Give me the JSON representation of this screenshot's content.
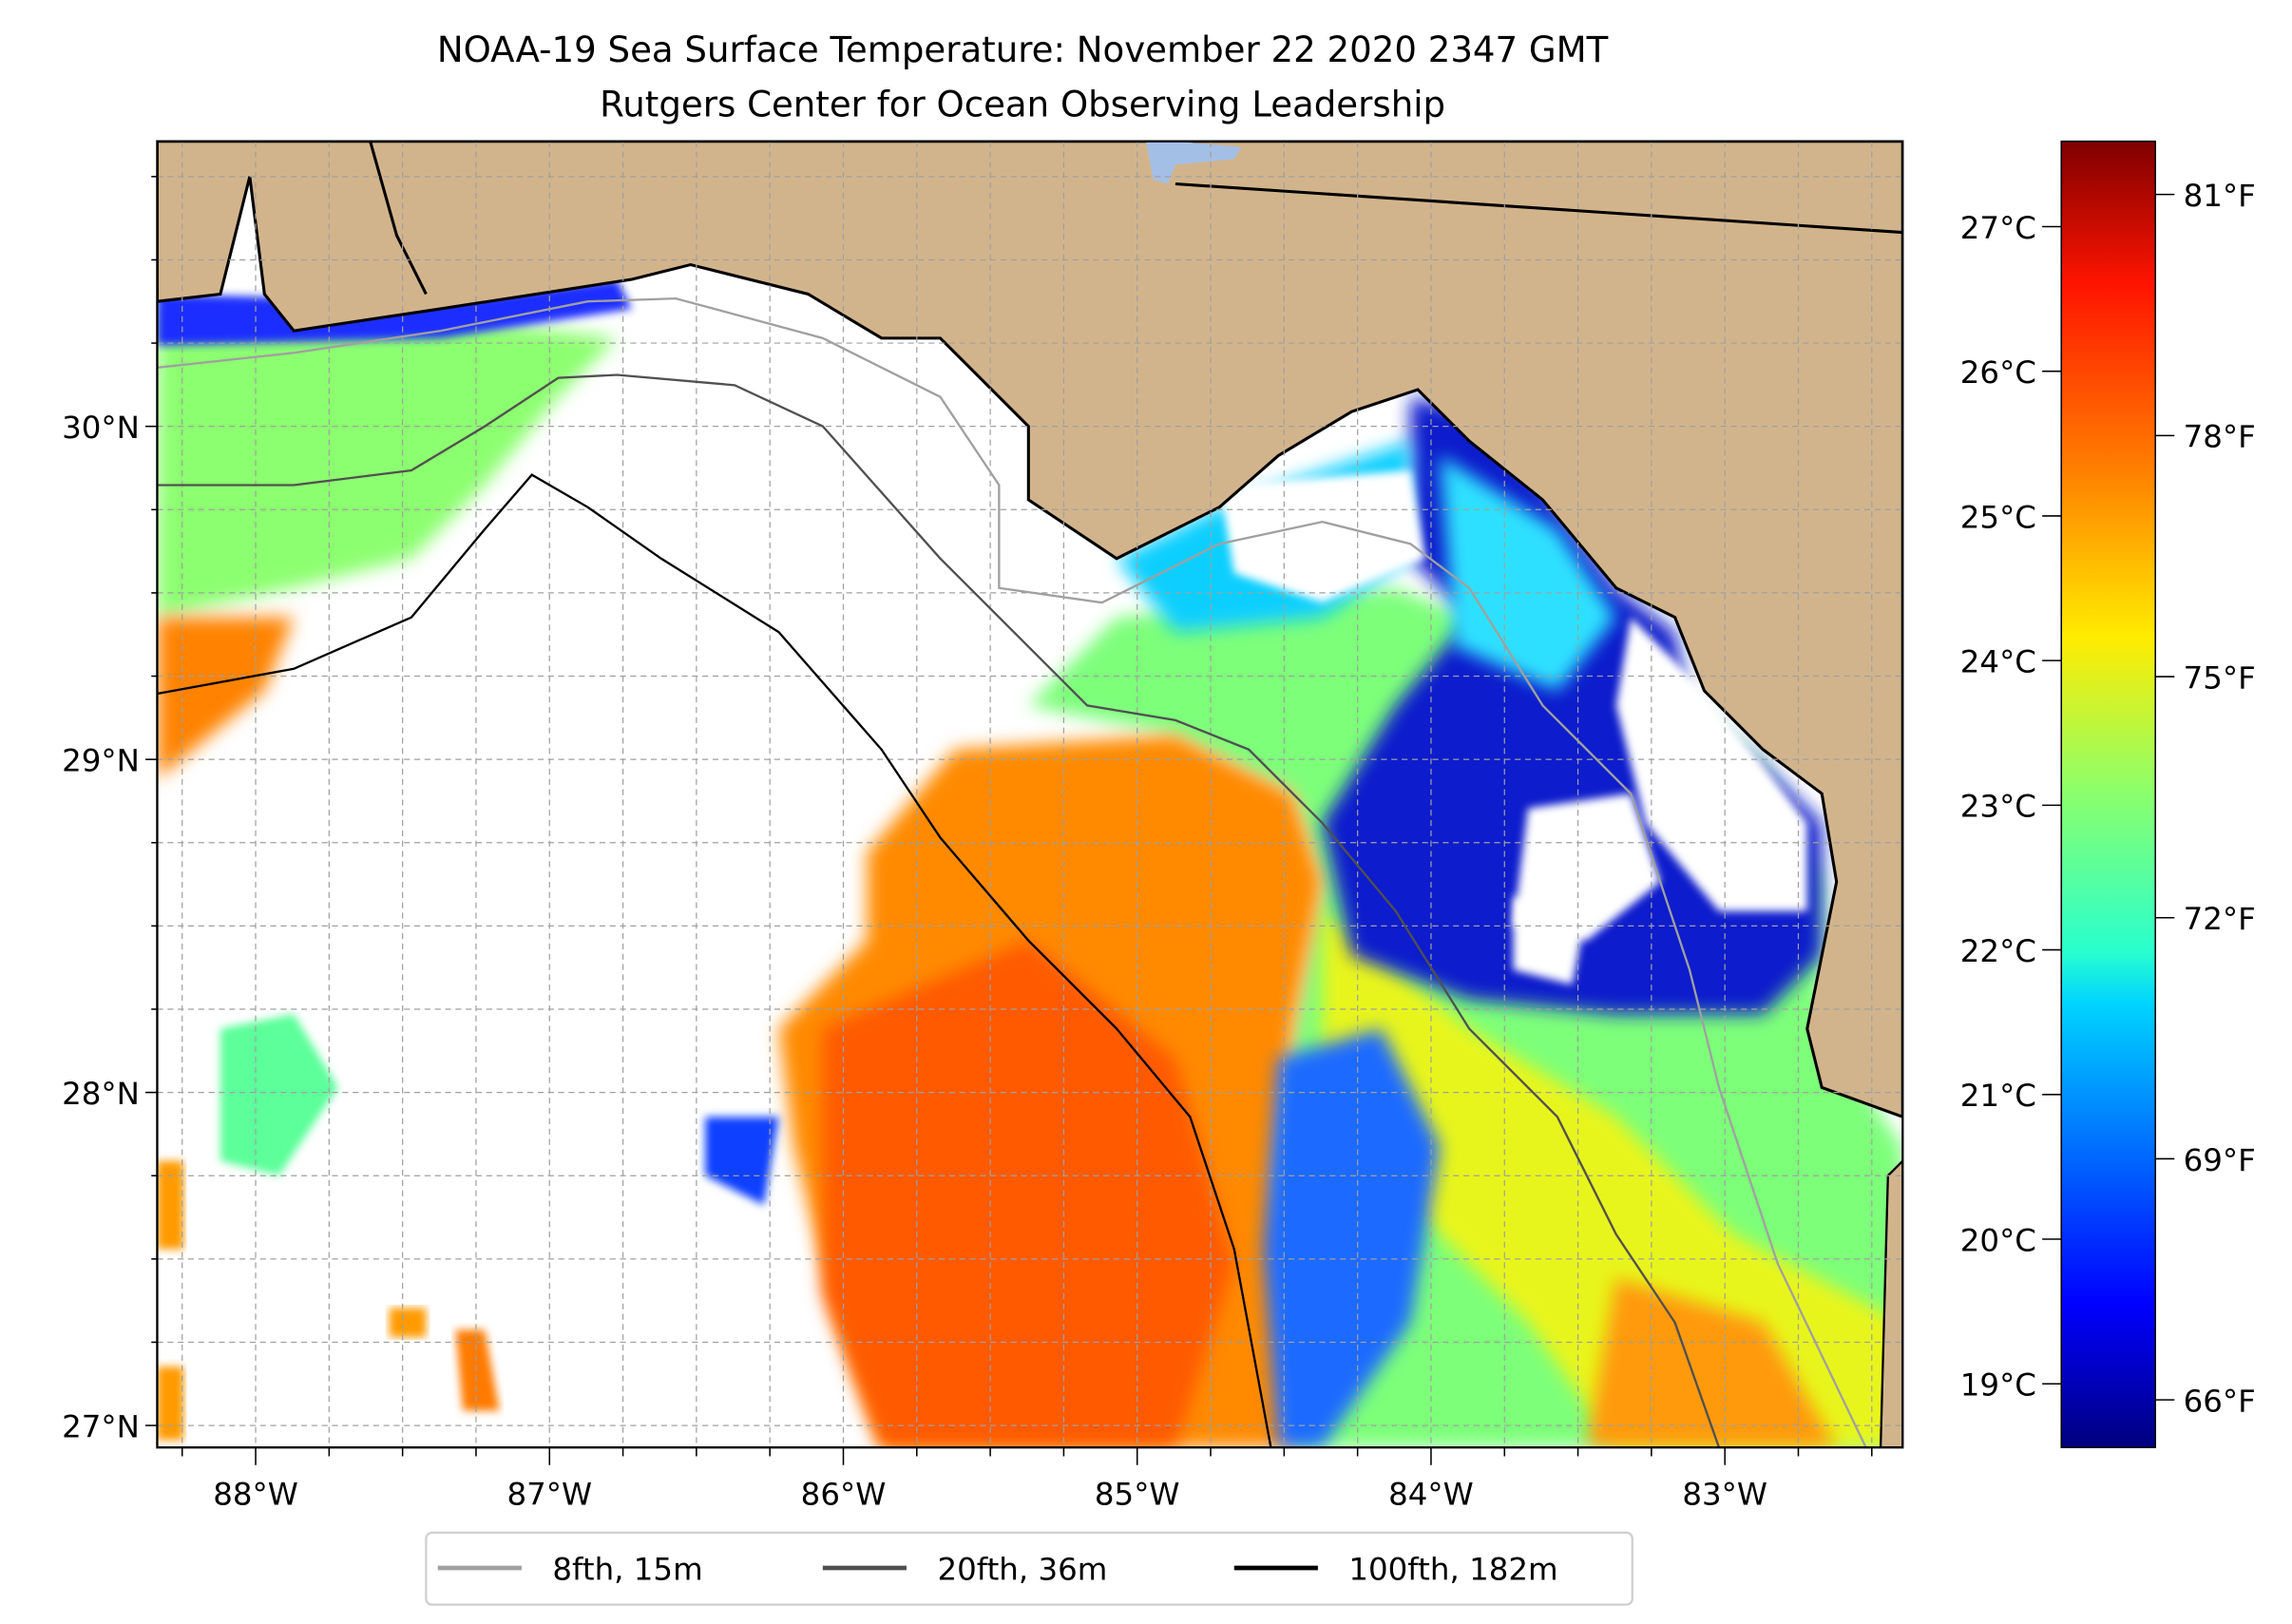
{
  "title": {
    "line1": "NOAA-19 Sea Surface Temperature: November 22 2020 2347 GMT",
    "line2": "Rutgers Center for Ocean Observing Leadership"
  },
  "chart_data": {
    "type": "heatmap",
    "variable": "Sea Surface Temperature",
    "lon_range": [
      -88.335,
      -82.395
    ],
    "lat_range": [
      26.934,
      30.856
    ],
    "x_ticks": [
      {
        "value": -88,
        "label": "88°W"
      },
      {
        "value": -87,
        "label": "87°W"
      },
      {
        "value": -86,
        "label": "86°W"
      },
      {
        "value": -85,
        "label": "85°W"
      },
      {
        "value": -84,
        "label": "84°W"
      },
      {
        "value": -83,
        "label": "83°W"
      }
    ],
    "y_ticks": [
      {
        "value": 30,
        "label": "30°N"
      },
      {
        "value": 29,
        "label": "29°N"
      },
      {
        "value": 28,
        "label": "28°N"
      },
      {
        "value": 27,
        "label": "27°N"
      }
    ],
    "grid": true,
    "colorbar": {
      "colormap": "jet",
      "range_c": [
        18.56,
        27.59
      ],
      "celsius_ticks": [
        {
          "value": 27,
          "label": "27°C"
        },
        {
          "value": 26,
          "label": "26°C"
        },
        {
          "value": 25,
          "label": "25°C"
        },
        {
          "value": 24,
          "label": "24°C"
        },
        {
          "value": 23,
          "label": "23°C"
        },
        {
          "value": 22,
          "label": "22°C"
        },
        {
          "value": 21,
          "label": "21°C"
        },
        {
          "value": 20,
          "label": "20°C"
        },
        {
          "value": 19,
          "label": "19°C"
        }
      ],
      "fahrenheit_ticks": [
        {
          "value": 81,
          "label": "81°F"
        },
        {
          "value": 78,
          "label": "78°F"
        },
        {
          "value": 75,
          "label": "75°F"
        },
        {
          "value": 72,
          "label": "72°F"
        },
        {
          "value": 69,
          "label": "69°F"
        },
        {
          "value": 66,
          "label": "66°F"
        }
      ]
    },
    "legend": {
      "placement": "bottom-center",
      "entries": [
        {
          "label": "8fth, 15m",
          "color": "#a0a0a0"
        },
        {
          "label": "20fth, 36m",
          "color": "#505050"
        },
        {
          "label": "100fth, 182m",
          "color": "#000000"
        }
      ]
    }
  },
  "colors": {
    "land": "#d2b48c",
    "lake": "#a4bfe6",
    "no_data": "#ffffff"
  }
}
